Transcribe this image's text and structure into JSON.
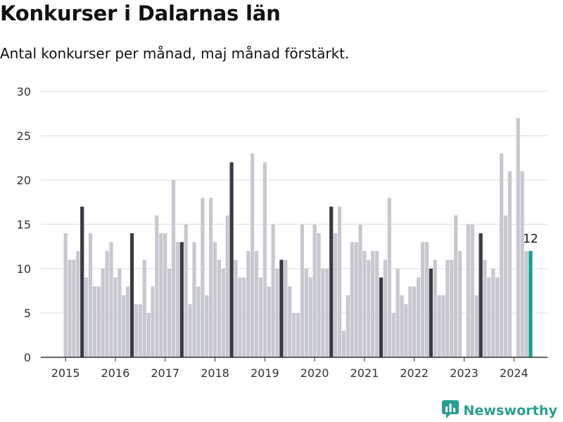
{
  "header": {
    "title": "Konkurser i Dalarnas län",
    "subtitle": "Antal konkurser per månad, maj månad förstärkt."
  },
  "brand": {
    "name": "Newsworthy",
    "icon": "bar-chart-logo-icon"
  },
  "colors": {
    "bar": "#c8c8d0",
    "highlight": "#3a3a45",
    "current": "#1a9e8c",
    "grid": "#dddddd",
    "axis": "#333333",
    "brand": "#2a9d8f"
  },
  "chart_data": {
    "type": "bar",
    "title": "Konkurser i Dalarnas län",
    "subtitle": "Antal konkurser per månad, maj månad förstärkt.",
    "xlabel": "",
    "ylabel": "",
    "ylim": [
      0,
      30
    ],
    "yticks": [
      0,
      5,
      10,
      15,
      20,
      25,
      30
    ],
    "xticks": [
      "2015",
      "2016",
      "2017",
      "2018",
      "2019",
      "2020",
      "2021",
      "2022",
      "2023",
      "2024"
    ],
    "grid": true,
    "start": "2015-01",
    "highlight_month": "May",
    "value_label": {
      "month": "2024-05",
      "text": "12"
    },
    "series": [
      {
        "years": [
          {
            "year": "2015",
            "values": [
              14,
              11,
              11,
              12,
              17,
              9,
              14,
              8,
              8,
              10,
              12,
              13
            ]
          },
          {
            "year": "2016",
            "values": [
              9,
              10,
              7,
              8,
              14,
              6,
              6,
              11,
              5,
              8,
              16,
              14
            ]
          },
          {
            "year": "2017",
            "values": [
              14,
              10,
              20,
              13,
              13,
              15,
              6,
              13,
              8,
              18,
              7,
              18
            ]
          },
          {
            "year": "2018",
            "values": [
              13,
              11,
              10,
              16,
              22,
              11,
              9,
              9,
              12,
              23,
              12,
              9
            ]
          },
          {
            "year": "2019",
            "values": [
              22,
              8,
              15,
              10,
              11,
              11,
              8,
              5,
              5,
              15,
              10,
              9
            ]
          },
          {
            "year": "2020",
            "values": [
              15,
              14,
              10,
              10,
              17,
              14,
              17,
              3,
              7,
              13,
              13,
              15
            ]
          },
          {
            "year": "2021",
            "values": [
              12,
              11,
              12,
              12,
              9,
              11,
              18,
              5,
              10,
              7,
              6,
              8
            ]
          },
          {
            "year": "2022",
            "values": [
              8,
              9,
              13,
              13,
              10,
              11,
              7,
              7,
              11,
              11,
              16,
              12
            ]
          },
          {
            "year": "2023",
            "values": [
              0,
              15,
              15,
              7,
              14,
              11,
              9,
              10,
              9,
              23,
              16,
              21
            ]
          },
          {
            "year": "2024",
            "values": [
              0,
              27,
              21,
              12,
              12
            ]
          }
        ]
      }
    ]
  }
}
